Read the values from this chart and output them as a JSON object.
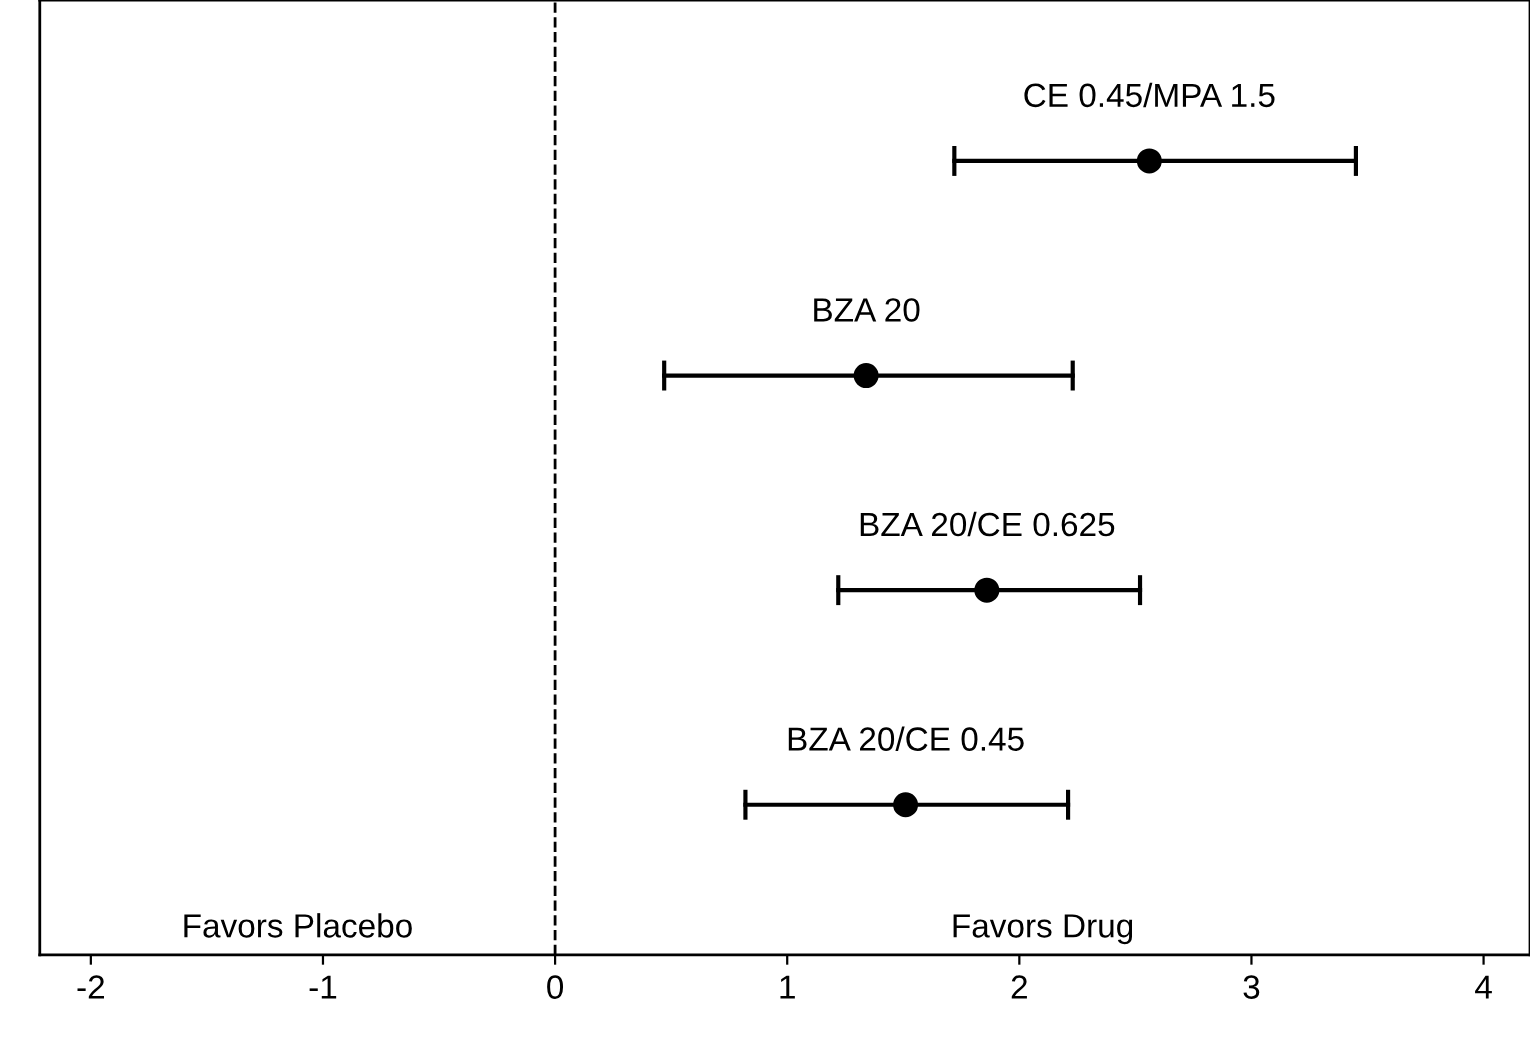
{
  "chart_data": {
    "type": "scatter",
    "orientation": "horizontal",
    "categories": [
      "CE 0.45/MPA 1.5",
      "BZA 20",
      "BZA 20/CE 0.625",
      "BZA 20/CE 0.45"
    ],
    "values": [
      2.56,
      1.34,
      1.86,
      1.51
    ],
    "errors": [
      [
        1.72,
        3.45
      ],
      [
        0.47,
        2.23
      ],
      [
        1.22,
        2.52
      ],
      [
        0.82,
        2.21
      ]
    ],
    "color": "#000000",
    "marker": "circle",
    "xlim": [
      -2.22,
      4.2
    ],
    "xticks": [
      -2,
      -1,
      0,
      1,
      2,
      3,
      4
    ],
    "ref_lines": [
      {
        "axis": "x",
        "value": 0,
        "line_style": "dashed",
        "color": "#000000"
      }
    ],
    "annotations": [
      "Favors Placebo",
      "Favors Drug"
    ],
    "tick_labels": "x",
    "grid": false,
    "legend": false
  }
}
